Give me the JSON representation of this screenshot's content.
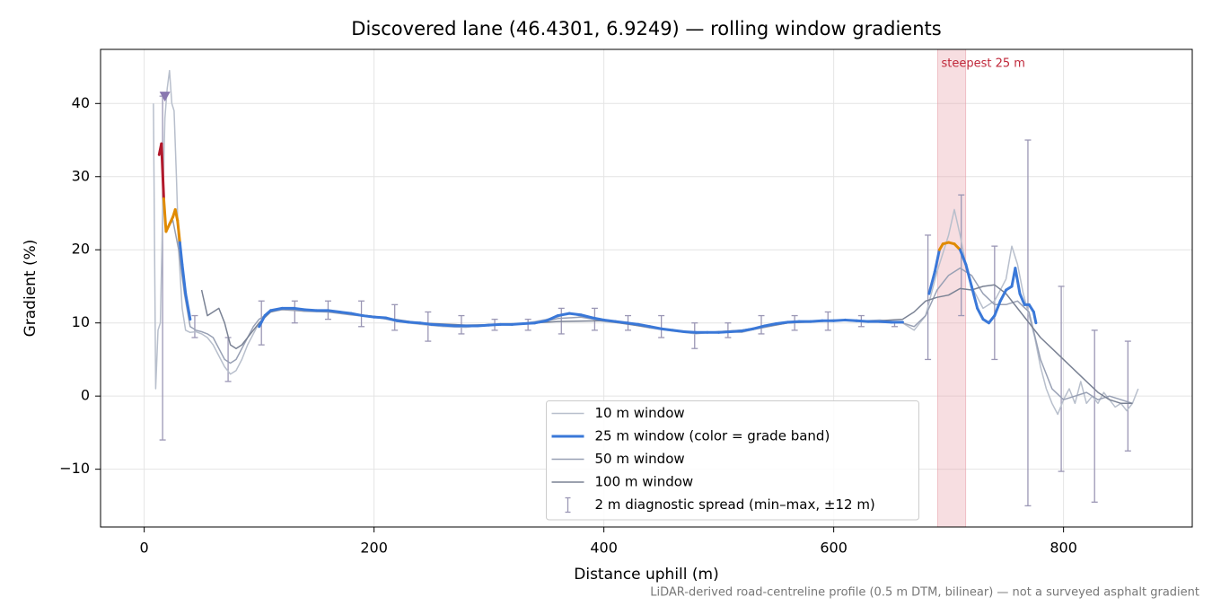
{
  "chart_data": {
    "type": "line",
    "title": "Discovered lane (46.4301, 6.9249) — rolling window gradients",
    "xlabel": "Distance uphill (m)",
    "ylabel": "Gradient (%)",
    "footnote": "LiDAR-derived road-centreline profile (0.5 m DTM, bilinear) — not a surveyed asphalt gradient",
    "xlim": [
      -38,
      912
    ],
    "ylim": [
      -17.9,
      47.4
    ],
    "xticks": [
      0,
      200,
      400,
      600,
      800
    ],
    "yticks": [
      {
        "value": -10,
        "label": "−10"
      },
      0,
      10,
      20,
      30,
      40
    ],
    "grid": true,
    "legend": "lower center",
    "highlight": {
      "x": [
        690.5,
        714.8
      ],
      "label": "steepest 25 m",
      "color": "#e8a0a8",
      "label_color": "#c0283a"
    },
    "peak_marker": {
      "x": 18,
      "y": 41,
      "color": "#8a78b0"
    },
    "series": [
      {
        "name": "10 m window",
        "color": "#b8bfcc",
        "x": [
          8,
          10,
          12,
          14,
          16,
          18,
          20,
          22,
          24,
          26,
          28,
          30,
          33,
          36,
          40,
          45,
          50,
          55,
          60,
          65,
          70,
          75,
          80,
          85,
          90,
          95,
          100,
          110,
          120,
          130,
          140,
          160,
          180,
          200,
          220,
          240,
          260,
          280,
          300,
          320,
          340,
          360,
          370,
          380,
          400,
          420,
          440,
          460,
          480,
          500,
          520,
          540,
          560,
          580,
          600,
          620,
          640,
          660,
          670,
          680,
          690,
          700,
          705,
          710,
          715,
          720,
          730,
          740,
          750,
          755,
          760,
          765,
          770,
          775,
          780,
          785,
          790,
          795,
          800,
          805,
          810,
          815,
          820,
          825,
          830,
          835,
          840,
          845,
          850,
          855,
          860,
          865
        ],
        "values": [
          40,
          1,
          9,
          10,
          25,
          38,
          42,
          44.5,
          40,
          39,
          30,
          20,
          12,
          9,
          8.7,
          8.8,
          8.5,
          8,
          7,
          5.5,
          4,
          3,
          3.5,
          5,
          7,
          8.5,
          10,
          11.5,
          12,
          11.8,
          11.6,
          11.7,
          11.2,
          10.9,
          10.2,
          9.8,
          9.5,
          9.4,
          9.8,
          9.7,
          10.2,
          10.8,
          11.4,
          10.9,
          10.2,
          9.9,
          9.3,
          8.9,
          8.5,
          8.8,
          8.7,
          9.5,
          10,
          10.1,
          10.4,
          10.2,
          10.4,
          10,
          9,
          11,
          17,
          22,
          25.5,
          22,
          18,
          15,
          12,
          13,
          16,
          20.5,
          18,
          14,
          11,
          8,
          4,
          1,
          -1,
          -2.5,
          -0.5,
          1,
          -1,
          2,
          -1,
          0,
          -1,
          0.5,
          -0.5,
          -1.5,
          -1,
          -2,
          -1,
          1
        ]
      },
      {
        "name": "25 m window (color = grade band)",
        "color": "#3a78d8",
        "grade_bands": [
          {
            "min": 20,
            "color": "#e08a00"
          },
          {
            "min": 30,
            "color": "#b2182b"
          }
        ],
        "x": [
          13,
          15,
          17,
          19,
          22,
          25,
          27,
          29,
          31,
          33,
          36,
          40,
          70,
          100,
          105,
          110,
          120,
          130,
          140,
          150,
          160,
          170,
          180,
          190,
          200,
          210,
          220,
          230,
          240,
          250,
          260,
          270,
          280,
          290,
          300,
          310,
          320,
          330,
          340,
          350,
          360,
          370,
          380,
          390,
          400,
          410,
          420,
          430,
          440,
          450,
          460,
          470,
          480,
          490,
          500,
          510,
          520,
          530,
          540,
          550,
          560,
          570,
          580,
          590,
          600,
          610,
          620,
          630,
          640,
          650,
          660,
          670,
          683,
          688,
          692,
          695,
          700,
          705,
          710,
          715,
          720,
          725,
          730,
          735,
          740,
          745,
          750,
          755,
          758,
          762,
          766,
          770,
          774,
          776
        ],
        "values": [
          33,
          34.5,
          27,
          22.5,
          23.5,
          24.5,
          25.5,
          24,
          21,
          18,
          14,
          10.5,
          null,
          9.5,
          11,
          11.7,
          12,
          12,
          11.8,
          11.7,
          11.7,
          11.5,
          11.3,
          11,
          10.8,
          10.7,
          10.3,
          10.1,
          10,
          9.8,
          9.7,
          9.6,
          9.6,
          9.6,
          9.7,
          9.8,
          9.8,
          9.9,
          10,
          10.3,
          11,
          11.3,
          11.1,
          10.7,
          10.4,
          10.2,
          10,
          9.8,
          9.5,
          9.2,
          9,
          8.8,
          8.7,
          8.7,
          8.7,
          8.8,
          8.9,
          9.2,
          9.6,
          9.9,
          10.1,
          10.2,
          10.2,
          10.3,
          10.3,
          10.4,
          10.3,
          10.2,
          10.2,
          10.1,
          10.1,
          null,
          14,
          17,
          20,
          20.8,
          21,
          20.8,
          20,
          18,
          15,
          12,
          10.5,
          10,
          11,
          13,
          14.5,
          15,
          17.5,
          14,
          12.5,
          12.5,
          11.5,
          10
        ]
      },
      {
        "name": "50 m window",
        "color": "#98a0b4",
        "x": [
          20,
          25,
          30,
          35,
          40,
          45,
          50,
          55,
          60,
          65,
          70,
          75,
          80,
          85,
          90,
          95,
          100,
          110,
          120,
          130,
          140,
          160,
          180,
          200,
          220,
          240,
          260,
          280,
          300,
          320,
          340,
          360,
          380,
          400,
          420,
          440,
          460,
          480,
          500,
          520,
          540,
          560,
          580,
          600,
          620,
          640,
          660,
          670,
          680,
          690,
          700,
          710,
          720,
          730,
          740,
          750,
          760,
          770,
          780,
          790,
          800,
          810,
          820,
          830,
          840,
          850,
          860
        ],
        "values": [
          23,
          24,
          20,
          14,
          9.5,
          9,
          8.8,
          8.5,
          8,
          6.5,
          5,
          4.5,
          5,
          6.5,
          8,
          9.5,
          10.5,
          11.5,
          11.8,
          11.7,
          11.6,
          11.5,
          11.1,
          10.8,
          10.3,
          9.9,
          9.7,
          9.6,
          9.7,
          9.8,
          9.9,
          10.6,
          10.8,
          10.3,
          9.9,
          9.5,
          9,
          8.7,
          8.7,
          8.8,
          9.4,
          10,
          10.2,
          10.3,
          10.3,
          10.1,
          10,
          9.5,
          11,
          14.5,
          16.5,
          17.5,
          16.5,
          14,
          12.5,
          12.5,
          13,
          11.5,
          5,
          1,
          -0.5,
          0,
          0.5,
          -0.5,
          0,
          -0.5,
          -1
        ]
      },
      {
        "name": "100 m window",
        "color": "#7a8294",
        "x": [
          50,
          55,
          60,
          65,
          70,
          75,
          80,
          85,
          90,
          100,
          110,
          120,
          140,
          160,
          200,
          240,
          280,
          320,
          360,
          400,
          440,
          480,
          520,
          560,
          600,
          640,
          660,
          670,
          680,
          690,
          700,
          710,
          720,
          730,
          740,
          750,
          760,
          770,
          780,
          790,
          800,
          810,
          820,
          830,
          840,
          850,
          860
        ],
        "values": [
          14.5,
          11,
          11.5,
          12,
          10,
          7,
          6.5,
          7,
          8,
          10,
          11.5,
          12,
          11.8,
          11.6,
          10.9,
          10,
          9.7,
          9.8,
          10.2,
          10.3,
          9.4,
          8.6,
          9,
          10,
          10.3,
          10.3,
          10.5,
          11.5,
          13,
          13.5,
          13.8,
          14.7,
          14.5,
          15,
          15.2,
          14,
          12,
          10,
          8,
          6.5,
          5,
          3.5,
          2,
          0.5,
          -0.5,
          -1,
          -1
        ]
      }
    ],
    "errorbars": {
      "name": "2 m diagnostic spread (min–max, ±12 m)",
      "color": "#9b97b5",
      "x": [
        16,
        44,
        73,
        102,
        131,
        160,
        189,
        218,
        247,
        276,
        305,
        334,
        363,
        392,
        421,
        450,
        479,
        508,
        537,
        566,
        595,
        624,
        653,
        682,
        711,
        740,
        769,
        798,
        827,
        856
      ],
      "low": [
        -6,
        8,
        2,
        7,
        10,
        10.5,
        9.5,
        9,
        7.5,
        8.5,
        9,
        9,
        8.5,
        9,
        9,
        8,
        6.5,
        8,
        8.5,
        9,
        9,
        9.5,
        9.5,
        5,
        11,
        5,
        -15,
        -10.3,
        -14.5,
        -7.5
      ],
      "high": [
        41,
        11,
        8,
        13,
        13,
        13,
        13,
        12.5,
        11.5,
        11,
        10.5,
        10.5,
        12,
        12,
        11,
        11,
        10,
        10,
        11,
        11,
        11.5,
        11,
        10,
        22,
        27.5,
        20.5,
        35,
        15,
        9,
        7.5
      ]
    }
  }
}
